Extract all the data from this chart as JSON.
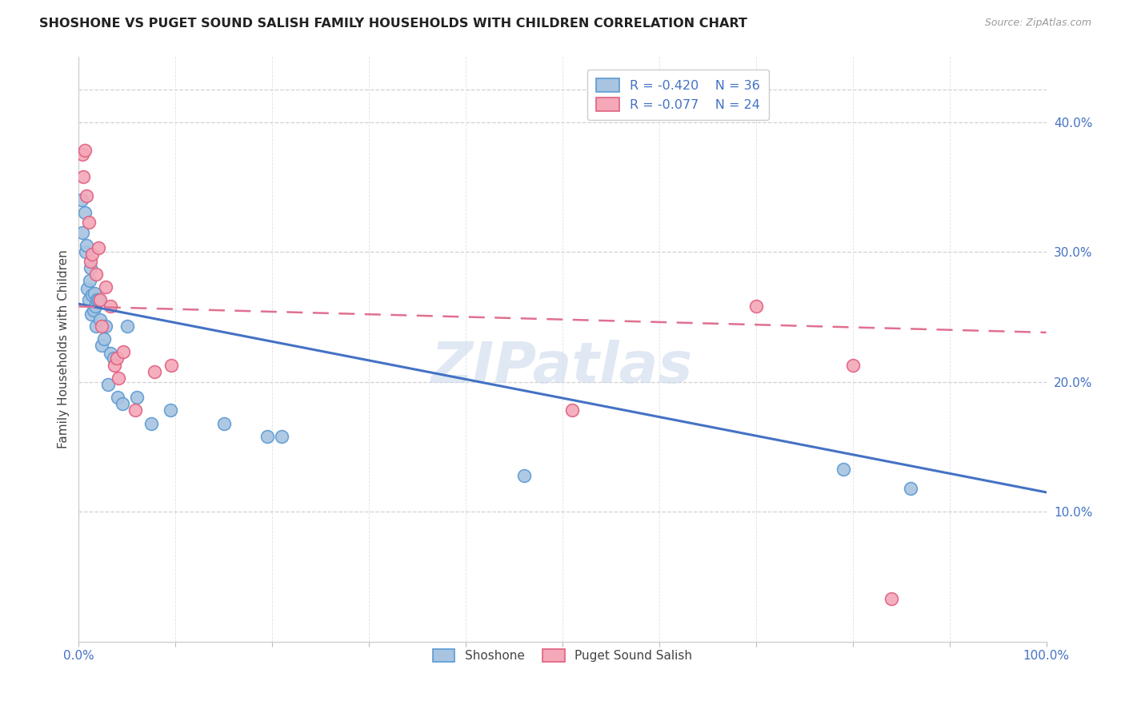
{
  "title": "SHOSHONE VS PUGET SOUND SALISH FAMILY HOUSEHOLDS WITH CHILDREN CORRELATION CHART",
  "source": "Source: ZipAtlas.com",
  "ylabel": "Family Households with Children",
  "xlim": [
    0.0,
    1.0
  ],
  "ylim": [
    0.0,
    0.45
  ],
  "y_ticks_right": [
    0.1,
    0.2,
    0.3,
    0.4
  ],
  "y_tick_labels_right": [
    "10.0%",
    "20.0%",
    "30.0%",
    "40.0%"
  ],
  "legend_labels": [
    "Shoshone",
    "Puget Sound Salish"
  ],
  "blue_R": "-0.420",
  "blue_N": "36",
  "pink_R": "-0.077",
  "pink_N": "24",
  "blue_color": "#a8c4e0",
  "pink_color": "#f4a8b8",
  "blue_edge_color": "#5b9bd5",
  "pink_edge_color": "#e06080",
  "blue_line_color": "#4472c4",
  "pink_line_color": "#e07090",
  "watermark": "ZIPatlas",
  "shoshone_x": [
    0.003,
    0.004,
    0.006,
    0.007,
    0.008,
    0.009,
    0.01,
    0.011,
    0.012,
    0.013,
    0.014,
    0.015,
    0.016,
    0.017,
    0.018,
    0.019,
    0.02,
    0.022,
    0.024,
    0.026,
    0.028,
    0.03,
    0.033,
    0.036,
    0.04,
    0.045,
    0.05,
    0.06,
    0.075,
    0.095,
    0.15,
    0.195,
    0.21,
    0.46,
    0.79,
    0.86
  ],
  "shoshone_y": [
    0.34,
    0.315,
    0.33,
    0.3,
    0.305,
    0.272,
    0.263,
    0.278,
    0.288,
    0.252,
    0.267,
    0.255,
    0.268,
    0.258,
    0.243,
    0.263,
    0.263,
    0.248,
    0.228,
    0.233,
    0.243,
    0.198,
    0.222,
    0.218,
    0.188,
    0.183,
    0.243,
    0.188,
    0.168,
    0.178,
    0.168,
    0.158,
    0.158,
    0.128,
    0.133,
    0.118
  ],
  "puget_x": [
    0.004,
    0.005,
    0.006,
    0.008,
    0.01,
    0.012,
    0.014,
    0.018,
    0.02,
    0.022,
    0.024,
    0.028,
    0.033,
    0.037,
    0.039,
    0.041,
    0.046,
    0.058,
    0.078,
    0.096,
    0.51,
    0.7,
    0.8,
    0.84
  ],
  "puget_y": [
    0.375,
    0.358,
    0.378,
    0.343,
    0.323,
    0.293,
    0.298,
    0.283,
    0.303,
    0.263,
    0.243,
    0.273,
    0.258,
    0.213,
    0.218,
    0.203,
    0.223,
    0.178,
    0.208,
    0.213,
    0.178,
    0.258,
    0.213,
    0.033
  ],
  "blue_trend_x": [
    0.0,
    1.0
  ],
  "blue_trend_y": [
    0.26,
    0.115
  ],
  "pink_trend_x": [
    0.0,
    1.0
  ],
  "pink_trend_y": [
    0.258,
    0.238
  ]
}
